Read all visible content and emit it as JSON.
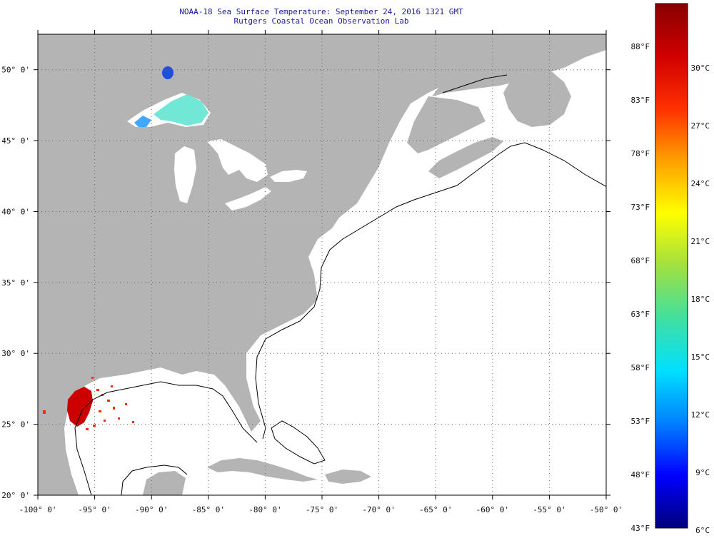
{
  "title": {
    "line1": "NOAA-18 Sea Surface Temperature:  September 24, 2016 1321 GMT",
    "line2": "Rutgers Coastal Ocean Observation Lab"
  },
  "map": {
    "lon_range": [
      -100,
      -50
    ],
    "lat_range": [
      20,
      52.5
    ],
    "land_color": "#b4b4b4",
    "ocean_color": "#ffffff",
    "grid": "dotted",
    "lon_ticks": [
      {
        "value": -100,
        "label": "-100° 0'"
      },
      {
        "value": -95,
        "label": "-95° 0'"
      },
      {
        "value": -90,
        "label": "-90° 0'"
      },
      {
        "value": -85,
        "label": "-85° 0'"
      },
      {
        "value": -80,
        "label": "-80° 0'"
      },
      {
        "value": -75,
        "label": "-75° 0'"
      },
      {
        "value": -70,
        "label": "-70° 0'"
      },
      {
        "value": -65,
        "label": "-65° 0'"
      },
      {
        "value": -60,
        "label": "-60° 0'"
      },
      {
        "value": -55,
        "label": "-55° 0'"
      },
      {
        "value": -50,
        "label": "-50° 0'"
      }
    ],
    "lat_ticks": [
      {
        "value": 20,
        "label": "20° 0'"
      },
      {
        "value": 25,
        "label": "25° 0'"
      },
      {
        "value": 30,
        "label": "30° 0'"
      },
      {
        "value": 35,
        "label": "35° 0'"
      },
      {
        "value": 40,
        "label": "40° 0'"
      },
      {
        "value": 45,
        "label": "45° 0'"
      },
      {
        "value": 50,
        "label": "50° 0'"
      }
    ]
  },
  "colorbar": {
    "fahrenheit_labels": [
      "88°F",
      "83°F",
      "78°F",
      "73°F",
      "68°F",
      "63°F",
      "58°F",
      "53°F",
      "48°F",
      "43°F"
    ],
    "celsius_labels": [
      "30°C",
      "27°C",
      "24°C",
      "21°C",
      "18°C",
      "15°C",
      "12°C",
      "9°C",
      "6°C"
    ],
    "range_f": [
      43,
      92
    ],
    "gradient": [
      "#00007a",
      "#0000ff",
      "#0080ff",
      "#00e0ff",
      "#40e0a0",
      "#a0e040",
      "#ffff00",
      "#ffa000",
      "#ff3000",
      "#d00000",
      "#880000"
    ]
  }
}
